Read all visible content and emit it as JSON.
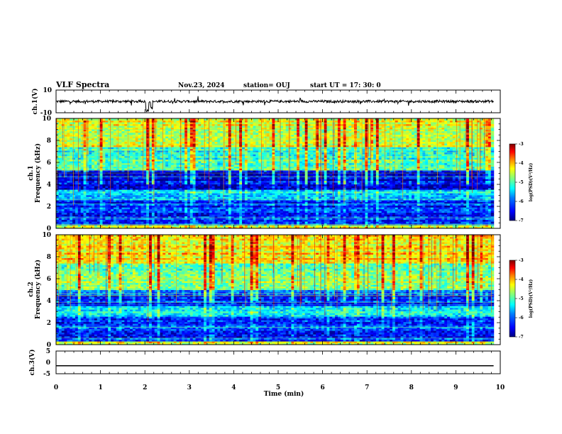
{
  "header": {
    "title": "VLF Spectra",
    "date": "Nov.23, 2024",
    "station": "station= OUJ",
    "start_ut": "start  UT  =   17: 30: 0"
  },
  "chart_data": [
    {
      "type": "line",
      "name": "ch1-waveform",
      "ylabel": "ch.1(V)",
      "ylim": [
        -10,
        10
      ],
      "ytick_labels": [
        "10",
        "-10"
      ],
      "x_range_min": [
        0,
        9.85
      ],
      "mean_level_v": 0,
      "color": "#000000"
    },
    {
      "type": "heatmap",
      "name": "ch1-spectrogram",
      "ylabel": "ch.1\nFrequency  (kHz)",
      "ylim": [
        0,
        10
      ],
      "ytick_labels": [
        "0",
        "2",
        "4",
        "6",
        "8",
        "10"
      ],
      "x_range_min": [
        0,
        9.85
      ],
      "colorbar": {
        "label": "log(PSD)(V²/Hz)",
        "range": [
          -7,
          -3
        ],
        "tick_labels": [
          "-3",
          "-4",
          "-5",
          "-6",
          "-7"
        ],
        "colormap": [
          "#00007f",
          "#0000ff",
          "#007fff",
          "#00ffff",
          "#7fff7f",
          "#ffff00",
          "#ff7f00",
          "#ff0000",
          "#7f0000"
        ]
      },
      "dominant_bands_khz": [
        {
          "from": 0,
          "to": 0.4,
          "level": -4.8
        },
        {
          "from": 0.4,
          "to": 2.6,
          "level": -6.3
        },
        {
          "from": 2.6,
          "to": 3.6,
          "level": -5.6
        },
        {
          "from": 3.6,
          "to": 5.4,
          "level": -6.6
        },
        {
          "from": 5.4,
          "to": 7.5,
          "level": -5.3
        },
        {
          "from": 7.5,
          "to": 10,
          "level": -4.6
        }
      ]
    },
    {
      "type": "heatmap",
      "name": "ch2-spectrogram",
      "ylabel": "ch.2\nFrequency  (kHz)",
      "ylim": [
        0,
        10
      ],
      "ytick_labels": [
        "0",
        "2",
        "4",
        "6",
        "8",
        "10"
      ],
      "x_range_min": [
        0,
        9.85
      ],
      "colorbar": {
        "label": "log(PSD)(V²/Hz)",
        "range": [
          -7,
          -3
        ],
        "tick_labels": [
          "-3",
          "-4",
          "-5",
          "-6",
          "-7"
        ],
        "colormap": [
          "#00007f",
          "#0000ff",
          "#007fff",
          "#00ffff",
          "#7fff7f",
          "#ffff00",
          "#ff7f00",
          "#ff0000",
          "#7f0000"
        ]
      },
      "dominant_bands_khz": [
        {
          "from": 0,
          "to": 0.4,
          "level": -4.8
        },
        {
          "from": 0.4,
          "to": 2.6,
          "level": -6.3
        },
        {
          "from": 2.6,
          "to": 3.6,
          "level": -5.6
        },
        {
          "from": 3.6,
          "to": 5.0,
          "level": -6.3
        },
        {
          "from": 5.0,
          "to": 7.5,
          "level": -5.0
        },
        {
          "from": 7.5,
          "to": 10,
          "level": -4.4
        }
      ]
    },
    {
      "type": "line",
      "name": "ch3-waveform",
      "ylabel": "ch.3(V)",
      "ylim": [
        -5,
        5
      ],
      "ytick_labels": [
        "5",
        "0",
        "-5"
      ],
      "x": [
        0,
        9.85
      ],
      "y": [
        -1.5,
        -1.5
      ],
      "color": "#000000"
    }
  ],
  "xaxis": {
    "label": "Time  (min)",
    "range": [
      0,
      10
    ],
    "tick_labels": [
      "0",
      "1",
      "2",
      "3",
      "4",
      "5",
      "6",
      "7",
      "8",
      "9",
      "10"
    ]
  }
}
